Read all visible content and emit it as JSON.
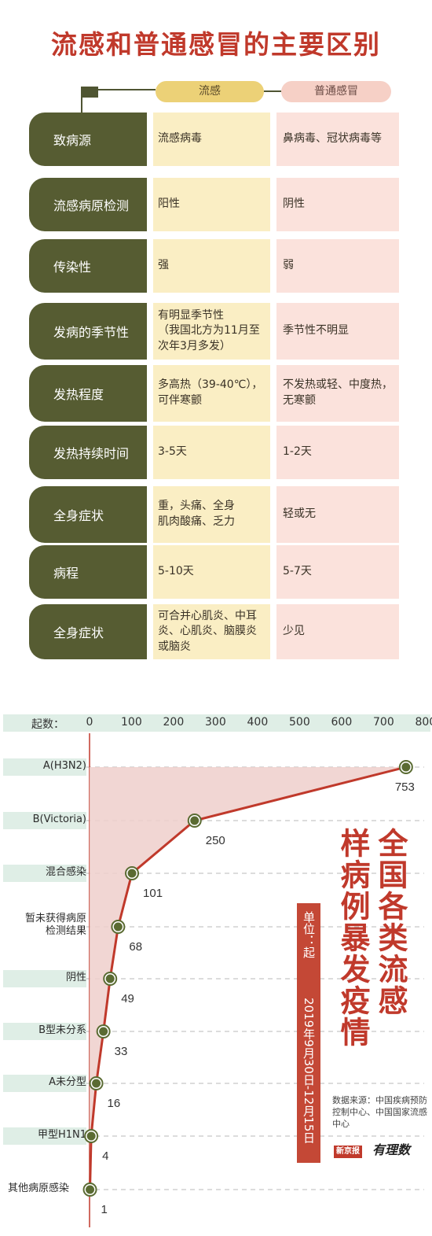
{
  "title": "流感和普通感冒的主要区别",
  "headers": {
    "flu": "流感",
    "cold": "普通感冒"
  },
  "rows": [
    {
      "label": "致病源",
      "flu": "流感病毒",
      "cold": "鼻病毒、冠状病毒等"
    },
    {
      "label": "流感病原检测",
      "flu": "阳性",
      "cold": "阴性"
    },
    {
      "label": "传染性",
      "flu": "强",
      "cold": "弱"
    },
    {
      "label": "发病的季节性",
      "flu": "有明显季节性\n（我国北方为11月至\n次年3月多发）",
      "cold": "季节性不明显"
    },
    {
      "label": "发热程度",
      "flu": "多高热（39-40℃），\n可伴寒颤",
      "cold": "不发热或轻、中度热，\n无寒颤"
    },
    {
      "label": "发热持续时间",
      "flu": "3-5天",
      "cold": "1-2天"
    },
    {
      "label": "全身症状",
      "flu": "重，头痛、全身\n肌肉酸痛、乏力",
      "cold": "轻或无"
    },
    {
      "label": "病程",
      "flu": "5-10天",
      "cold": "5-7天"
    },
    {
      "label": "全身症状",
      "flu": "可合并心肌炎、中耳\n炎、心肌炎、脑膜炎\n或脑炎",
      "cold": "少见"
    }
  ],
  "chart_data": {
    "type": "line",
    "title": "全国各类流感样病例暴发疫情",
    "unit": "单位：起",
    "period": "2019年9月30日-12月15日",
    "source": "数据来源：中国疾病预防控制中心、中国国家流感中心",
    "axis_label": "起数：",
    "xlim": [
      0,
      800
    ],
    "x_ticks": [
      "0",
      "100",
      "200",
      "300",
      "400",
      "500",
      "600",
      "700",
      "800"
    ],
    "categories": [
      "A(H3N2)",
      "B(Victoria)",
      "混合感染",
      "暂未获得病原\n检测结果",
      "阴性",
      "B型未分系",
      "A未分型",
      "甲型H1N1",
      "其他病原感染"
    ],
    "values": [
      753,
      250,
      101,
      68,
      49,
      33,
      16,
      4,
      1
    ],
    "colors": {
      "line": "#c0392b",
      "fill": "#eecfcb",
      "marker": "#5a6b32",
      "label_band": "#dfeee6"
    }
  },
  "logo": {
    "name": "新京报",
    "script": "有理数"
  }
}
